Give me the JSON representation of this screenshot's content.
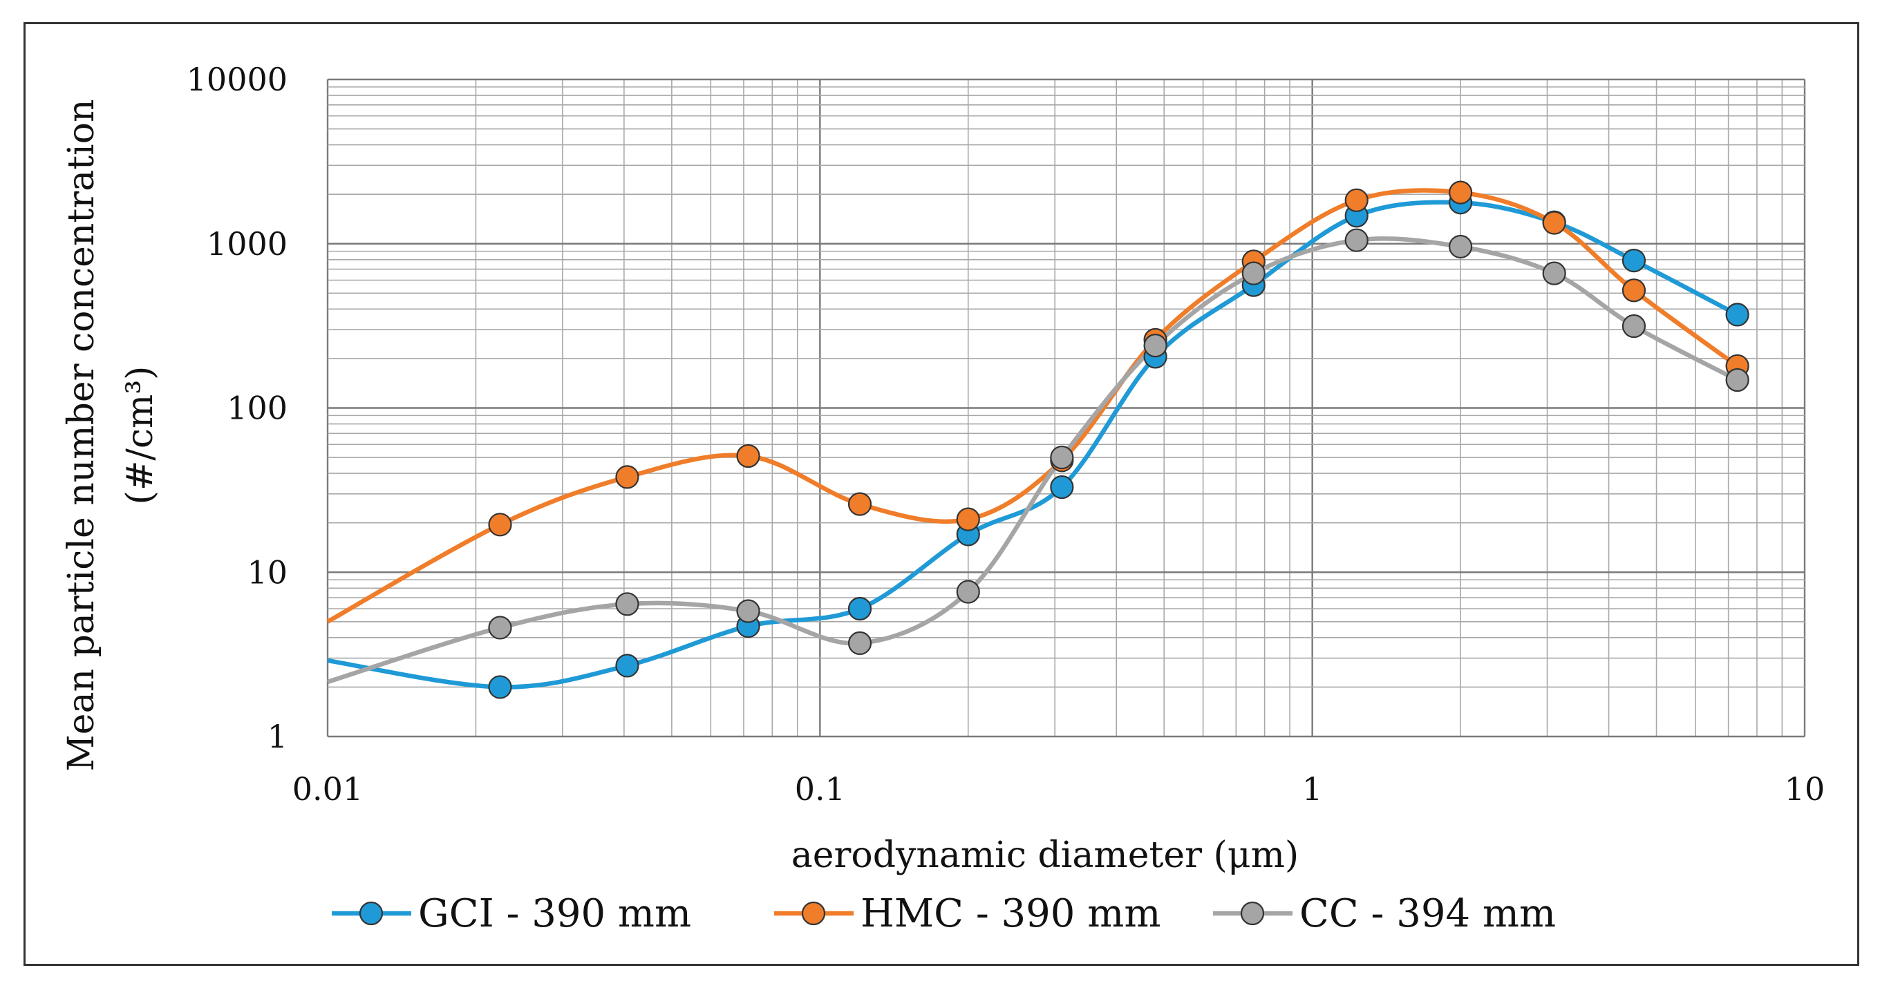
{
  "chart_data": {
    "type": "line",
    "title": "",
    "xlabel": "aerodynamic diameter (μm)",
    "ylabel_line1": "Mean particle number  concentration",
    "ylabel_line2": "(#/cm³)",
    "x_scale": "log",
    "y_scale": "log",
    "xlim": [
      0.01,
      10
    ],
    "ylim": [
      1,
      10000
    ],
    "x_ticks": [
      {
        "value": 0.01,
        "label": "0.01"
      },
      {
        "value": 0.1,
        "label": "0.1"
      },
      {
        "value": 1,
        "label": "1"
      },
      {
        "value": 10,
        "label": "10"
      }
    ],
    "y_ticks": [
      {
        "value": 1,
        "label": "1"
      },
      {
        "value": 10,
        "label": "10"
      },
      {
        "value": 100,
        "label": "100"
      },
      {
        "value": 1000,
        "label": "1000"
      },
      {
        "value": 10000,
        "label": "10000"
      }
    ],
    "grid": true,
    "legend_position": "bottom",
    "series": [
      {
        "name": "GCI - 390 mm",
        "color": "#1f9ad6",
        "line_start": {
          "x": 0.01,
          "y": 2.9
        },
        "points": [
          {
            "x": 0.0224,
            "y": 2.0
          },
          {
            "x": 0.0406,
            "y": 2.7
          },
          {
            "x": 0.0715,
            "y": 4.7
          },
          {
            "x": 0.1205,
            "y": 6.0
          },
          {
            "x": 0.2,
            "y": 17
          },
          {
            "x": 0.31,
            "y": 33
          },
          {
            "x": 0.48,
            "y": 205
          },
          {
            "x": 0.76,
            "y": 560
          },
          {
            "x": 1.23,
            "y": 1480
          },
          {
            "x": 2.0,
            "y": 1780
          },
          {
            "x": 3.1,
            "y": 1350
          },
          {
            "x": 4.5,
            "y": 790
          },
          {
            "x": 7.3,
            "y": 370
          }
        ]
      },
      {
        "name": "HMC - 390 mm",
        "color": "#f07d2a",
        "line_start": {
          "x": 0.01,
          "y": 5.0
        },
        "points": [
          {
            "x": 0.0224,
            "y": 19.5
          },
          {
            "x": 0.0406,
            "y": 38
          },
          {
            "x": 0.0715,
            "y": 51
          },
          {
            "x": 0.1205,
            "y": 26
          },
          {
            "x": 0.2,
            "y": 21
          },
          {
            "x": 0.31,
            "y": 48
          },
          {
            "x": 0.48,
            "y": 260
          },
          {
            "x": 0.76,
            "y": 780
          },
          {
            "x": 1.23,
            "y": 1840
          },
          {
            "x": 2.0,
            "y": 2050
          },
          {
            "x": 3.1,
            "y": 1340
          },
          {
            "x": 4.5,
            "y": 520
          },
          {
            "x": 7.3,
            "y": 180
          }
        ]
      },
      {
        "name": "CC - 394 mm",
        "color": "#a5a5a5",
        "line_start": {
          "x": 0.01,
          "y": 2.15
        },
        "points": [
          {
            "x": 0.0224,
            "y": 4.6
          },
          {
            "x": 0.0406,
            "y": 6.4
          },
          {
            "x": 0.0715,
            "y": 5.8
          },
          {
            "x": 0.1205,
            "y": 3.7
          },
          {
            "x": 0.2,
            "y": 7.6
          },
          {
            "x": 0.31,
            "y": 50
          },
          {
            "x": 0.48,
            "y": 240
          },
          {
            "x": 0.76,
            "y": 660
          },
          {
            "x": 1.23,
            "y": 1050
          },
          {
            "x": 2.0,
            "y": 960
          },
          {
            "x": 3.1,
            "y": 660
          },
          {
            "x": 4.5,
            "y": 315
          },
          {
            "x": 7.3,
            "y": 148
          }
        ]
      }
    ]
  }
}
